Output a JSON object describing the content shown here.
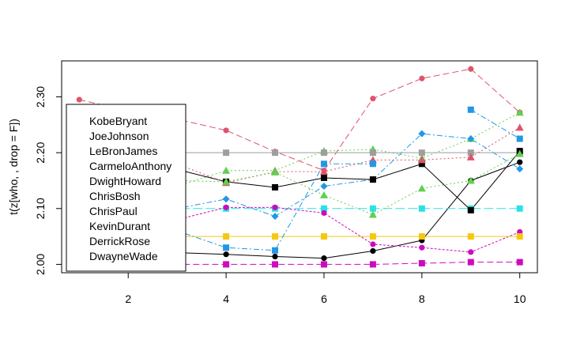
{
  "chart_data": {
    "type": "line",
    "title": "",
    "xlabel": "",
    "ylabel": "t(z[who, , drop = F])",
    "xlim": [
      0.64,
      10.36
    ],
    "ylim": [
      1.985,
      2.3645
    ],
    "xticks": [
      2,
      4,
      6,
      8,
      10
    ],
    "yticks": [
      2.0,
      2.1,
      2.2,
      2.3
    ],
    "ytick_labels": [
      "2.00",
      "2.10",
      "2.20",
      "2.30"
    ],
    "grid": false,
    "legend_position": "left",
    "x": [
      1,
      2,
      3,
      4,
      5,
      6,
      7,
      8,
      9,
      10
    ],
    "series": [
      {
        "name": "KobeBryant",
        "color": "#000000",
        "marker": "circle",
        "dash": "solid",
        "values": [
          2.032,
          2.025,
          2.021,
          2.018,
          2.014,
          2.011,
          2.024,
          2.043,
          2.15,
          2.183
        ]
      },
      {
        "name": "JoeJohnson",
        "color": "#DF536B",
        "marker": "circle",
        "dash": "8,4",
        "values": [
          2.295,
          2.275,
          2.26,
          2.24,
          2.202,
          2.168,
          2.297,
          2.333,
          2.35,
          2.272
        ]
      },
      {
        "name": "LeBronJames",
        "color": "#61D04F",
        "marker": "triangle",
        "dash": "2,3",
        "values": [
          2.15,
          2.142,
          2.14,
          2.168,
          2.168,
          2.203,
          2.206,
          2.19,
          2.225,
          2.272
        ]
      },
      {
        "name": "CarmeloAnthony",
        "color": "#2297E6",
        "marker": "diamond",
        "dash": "7,3,2,3",
        "values": [
          2.06,
          2.08,
          2.1,
          2.117,
          2.086,
          2.14,
          2.152,
          2.234,
          2.225,
          2.171
        ]
      },
      {
        "name": "DwightHoward",
        "color": "#28E2E5",
        "marker": "square",
        "dash": "12,4",
        "values": [
          2.1,
          2.1,
          2.1,
          2.1,
          2.1,
          2.1,
          2.1,
          2.1,
          2.1,
          2.1
        ]
      },
      {
        "name": "ChrisBosh",
        "color": "#CD0BBC",
        "marker": "circle",
        "dash": "3,2",
        "values": [
          2.03,
          2.04,
          2.08,
          2.102,
          2.102,
          2.092,
          2.036,
          2.03,
          2.022,
          2.058
        ]
      },
      {
        "name": "ChrisPaul",
        "color": "#F5C710",
        "marker": "square",
        "dash": "solid",
        "values": [
          2.05,
          2.05,
          2.05,
          2.05,
          2.05,
          2.05,
          2.05,
          2.05,
          2.05,
          2.05
        ]
      },
      {
        "name": "KevinDurant",
        "color": "#9E9E9E",
        "marker": "square",
        "dash": "solid",
        "values": [
          2.2,
          2.2,
          2.2,
          2.2,
          2.2,
          2.2,
          2.2,
          2.2,
          2.2,
          2.2
        ]
      },
      {
        "name": "DerrickRose",
        "color": "#000000",
        "marker": "square",
        "dash": "solid",
        "values": [
          2.2,
          2.19,
          2.17,
          2.148,
          2.138,
          2.155,
          2.152,
          2.18,
          2.097,
          2.203
        ]
      },
      {
        "name": "DwayneWade",
        "color": "#DF536B",
        "marker": "triangle",
        "dash": "2,3",
        "values": [
          2.2,
          2.19,
          2.18,
          2.146,
          2.166,
          2.166,
          2.187,
          2.187,
          2.192,
          2.245
        ]
      }
    ],
    "extra_series": [
      {
        "color": "#61D04F",
        "marker": "triangle",
        "dash": "2,3",
        "values": [
          2.15,
          2.15,
          2.15,
          2.148,
          2.165,
          2.124,
          2.089,
          2.136,
          2.15,
          2.198
        ]
      },
      {
        "color": "#2297E6",
        "marker": "square",
        "dash": "7,3,2,3",
        "values": [
          2.08,
          2.07,
          2.06,
          2.03,
          2.025,
          2.18,
          2.18,
          null,
          2.277,
          2.225
        ]
      },
      {
        "color": "#CD0BBC",
        "marker": "square",
        "dash": "8,4",
        "values": [
          2.0,
          2.0,
          2.0,
          2.0,
          2.0,
          2.0,
          2.0,
          2.002,
          2.004,
          2.004
        ]
      }
    ]
  }
}
